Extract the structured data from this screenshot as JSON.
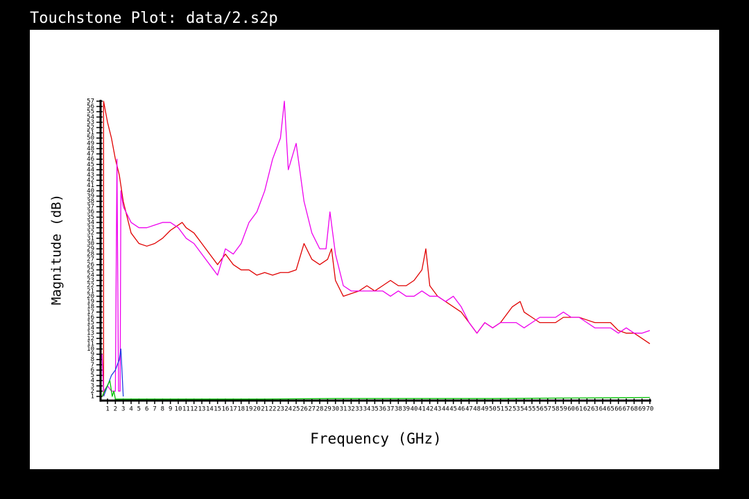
{
  "window_title": "Touchstone Plot: data/2.s2p",
  "chart_data": {
    "type": "line",
    "xlabel": "Frequency (GHz)",
    "ylabel": "Magnitude (dB)",
    "xlim": [
      0,
      70
    ],
    "ylim": [
      0,
      57
    ],
    "grid": false,
    "xticks": [
      1,
      2,
      3,
      4,
      5,
      6,
      7,
      8,
      9,
      10,
      11,
      12,
      13,
      14,
      15,
      16,
      17,
      18,
      19,
      20,
      21,
      22,
      23,
      24,
      25,
      26,
      27,
      28,
      29,
      30,
      31,
      32,
      33,
      34,
      35,
      36,
      37,
      38,
      39,
      40,
      41,
      42,
      43,
      44,
      45,
      46,
      47,
      48,
      49,
      50,
      51,
      52,
      53,
      54,
      55,
      56,
      57,
      58,
      59,
      60,
      61,
      62,
      63,
      64,
      65,
      66,
      67,
      68,
      69,
      70
    ],
    "yticks": [
      1,
      2,
      3,
      4,
      5,
      6,
      7,
      8,
      9,
      10,
      11,
      12,
      13,
      14,
      15,
      16,
      17,
      18,
      19,
      20,
      21,
      22,
      23,
      24,
      25,
      26,
      27,
      28,
      29,
      30,
      31,
      32,
      33,
      34,
      35,
      36,
      37,
      38,
      39,
      40,
      41,
      42,
      43,
      44,
      45,
      46,
      47,
      48,
      49,
      50,
      51,
      52,
      53,
      54,
      55,
      56,
      57
    ],
    "series": [
      {
        "color": "#e00000",
        "x": [
          0.5,
          0.5,
          1,
          1.5,
          2,
          2.5,
          3,
          4,
          5,
          6,
          7,
          8,
          9,
          9.5,
          10.5,
          11,
          12,
          13,
          14,
          15,
          16,
          17,
          18,
          19,
          20,
          21,
          22,
          23,
          24,
          25,
          26,
          27,
          28,
          29,
          29.5,
          30,
          31,
          32,
          33,
          34,
          35,
          36,
          37,
          38,
          39,
          40,
          41,
          41.5,
          42,
          43,
          44,
          45,
          46,
          47,
          48,
          49,
          50,
          51,
          52,
          52.5,
          53.5,
          54,
          55,
          56,
          57,
          58,
          59,
          60,
          61,
          62,
          63,
          64,
          65,
          66,
          67,
          68,
          69,
          70
        ],
        "values": [
          1,
          57,
          53,
          50,
          46,
          43,
          38,
          32,
          30,
          29.5,
          30,
          31,
          32.5,
          33,
          34,
          33,
          32,
          30,
          28,
          26,
          28,
          26,
          25,
          25,
          24,
          24.5,
          24,
          24.5,
          24.5,
          25,
          30,
          27,
          26,
          27,
          29,
          23,
          20,
          20.5,
          21,
          22,
          21,
          22,
          23,
          22,
          22,
          23,
          25,
          29,
          22,
          20,
          19,
          18,
          17,
          15,
          13,
          15,
          14,
          15,
          17,
          18,
          19,
          17,
          16,
          15,
          15,
          15,
          16,
          16,
          16,
          15.5,
          15,
          15,
          15,
          13.5,
          13,
          13,
          12,
          11
        ]
      },
      {
        "color": "#ee00ee",
        "x": [
          0.3,
          0.5,
          1,
          1.5,
          2,
          2.2,
          2.4,
          2.6,
          2.7,
          3,
          4,
          5,
          6,
          7,
          8,
          9,
          10,
          11,
          12,
          13,
          14,
          15,
          16,
          17,
          18,
          19,
          20,
          21,
          22,
          23,
          23.5,
          24,
          25,
          26,
          27,
          28,
          28.8,
          29.3,
          30,
          31,
          32,
          33,
          34,
          35,
          36,
          37,
          38,
          39,
          40,
          41,
          42,
          43,
          44,
          45,
          46,
          47,
          48,
          49,
          50,
          51,
          52,
          53,
          54,
          55,
          56,
          57,
          58,
          59,
          60,
          61,
          62,
          63,
          64,
          65,
          66,
          67,
          68,
          69,
          70
        ],
        "values": [
          9,
          2,
          3,
          2,
          2,
          46,
          2,
          2,
          40,
          37,
          34,
          33,
          33,
          33.5,
          34,
          34,
          33,
          31,
          30,
          28,
          26,
          24,
          29,
          28,
          30,
          34,
          36,
          40,
          46,
          50,
          57,
          44,
          49,
          38,
          32,
          29,
          29,
          36,
          28,
          22,
          21,
          21,
          21,
          21,
          21,
          20,
          21,
          20,
          20,
          21,
          20,
          20,
          19,
          20,
          18,
          15,
          13,
          15,
          14,
          15,
          15,
          15,
          14,
          15,
          16,
          16,
          16,
          17,
          16,
          16,
          15,
          14,
          14,
          14,
          13,
          14,
          13,
          13,
          13.5
        ]
      },
      {
        "color": "#2040e0",
        "x": [
          0.5,
          1,
          1.5,
          2,
          2.5,
          2.7,
          3
        ],
        "values": [
          1,
          3,
          5,
          6,
          8,
          10,
          1
        ]
      },
      {
        "color": "#00c000",
        "x": [
          0.3,
          0.8,
          1.3,
          1.6,
          1.8,
          2,
          3,
          10,
          20,
          30,
          40,
          50,
          60,
          70
        ],
        "values": [
          1,
          2.5,
          4,
          1,
          2,
          0.5,
          0.5,
          0.5,
          0.5,
          0.6,
          0.6,
          0.6,
          0.7,
          0.8
        ]
      }
    ]
  }
}
